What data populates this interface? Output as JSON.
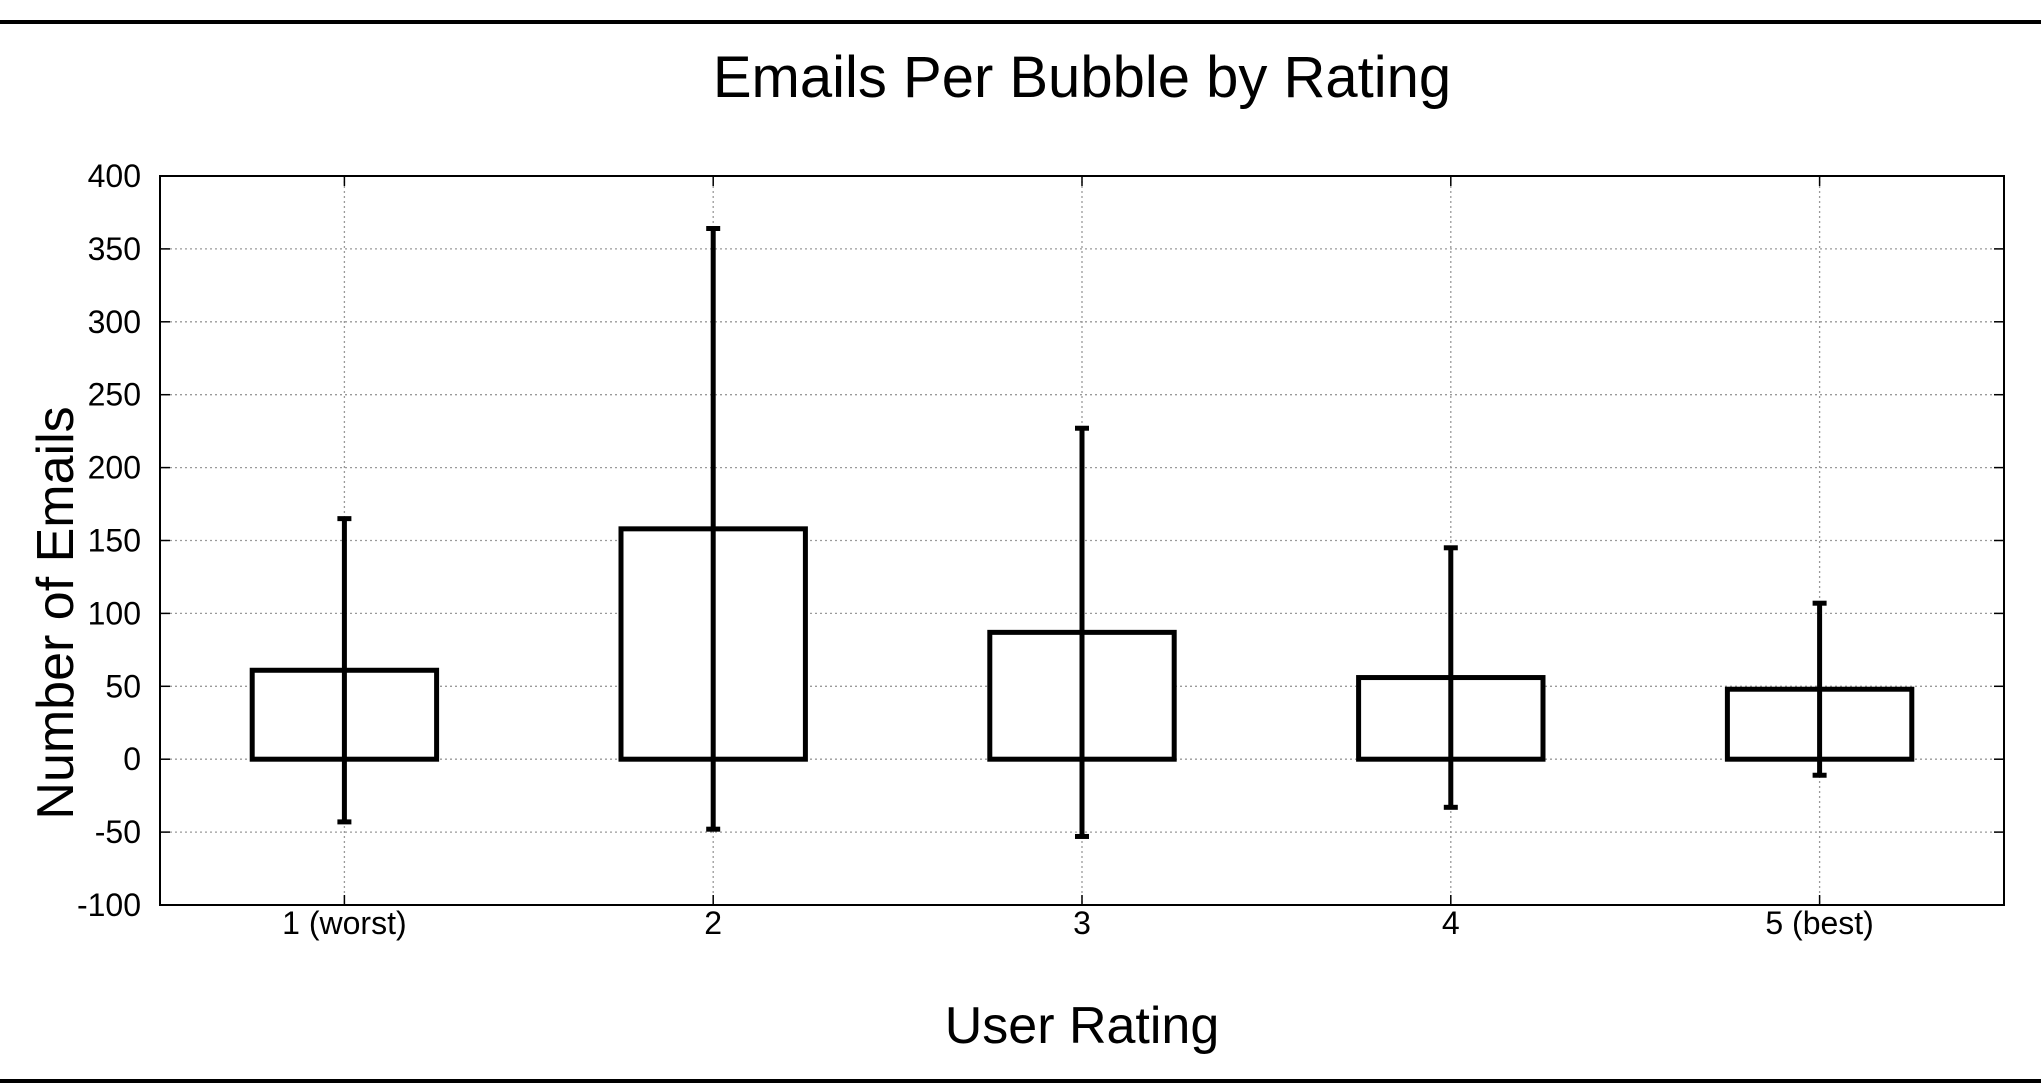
{
  "chart_data": {
    "type": "bar",
    "title": "Emails Per Bubble by Rating",
    "xlabel": "User Rating",
    "ylabel": "Number of Emails",
    "categories": [
      "1 (worst)",
      "2",
      "3",
      "4",
      "5 (best)"
    ],
    "values": [
      61,
      158,
      87,
      56,
      48
    ],
    "error": [
      104,
      206,
      140,
      89,
      59
    ],
    "ylim": [
      -100,
      400
    ],
    "yticks": [
      -100,
      -50,
      0,
      50,
      100,
      150,
      200,
      250,
      300,
      350,
      400
    ],
    "ytick_labels": [
      "-100",
      "-50",
      "0",
      "50",
      "100",
      "150",
      "200",
      "250",
      "300",
      "350",
      "400"
    ],
    "grid": true,
    "bar_fill": "#ffffff",
    "bar_edge": "#000000",
    "grid_color": "#9a9a9a"
  }
}
